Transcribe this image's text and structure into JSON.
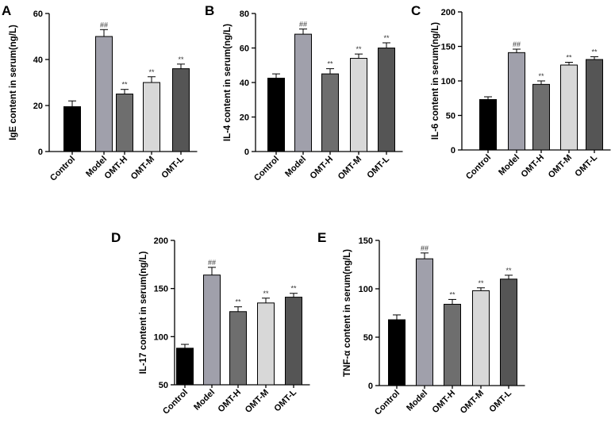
{
  "chart_data": [
    {
      "panel": "A",
      "type": "bar",
      "ylabel": "IgE content in serum(ng/L)",
      "categories": [
        "Control",
        "Model",
        "OMT-H",
        "OMT-M",
        "OMT-L"
      ],
      "values": [
        19.5,
        50,
        25,
        30,
        36
      ],
      "errors": [
        2.5,
        3,
        2,
        2.5,
        2
      ],
      "significance": [
        "",
        "##",
        "**",
        "**",
        "**"
      ],
      "ylim": [
        0,
        60
      ],
      "yticks": [
        0,
        20,
        40,
        60
      ],
      "colors": [
        "#000000",
        "#a0a0ab",
        "#6e6e6e",
        "#d8d8d8",
        "#555555"
      ]
    },
    {
      "panel": "B",
      "type": "bar",
      "ylabel": "IL-4  content in serum(ng/L)",
      "categories": [
        "Control",
        "Model",
        "OMT-H",
        "OMT-M",
        "OMT-L"
      ],
      "values": [
        42.5,
        68,
        45,
        54,
        60
      ],
      "errors": [
        2.5,
        3,
        3,
        2.5,
        3
      ],
      "significance": [
        "",
        "##",
        "**",
        "**",
        "**"
      ],
      "ylim": [
        0,
        80
      ],
      "yticks": [
        0,
        20,
        40,
        60,
        80
      ],
      "colors": [
        "#000000",
        "#a0a0ab",
        "#6e6e6e",
        "#d8d8d8",
        "#555555"
      ]
    },
    {
      "panel": "C",
      "type": "bar",
      "ylabel": "IL-6 content in serum(ng/L)",
      "categories": [
        "Control",
        "Model",
        "OMT-H",
        "OMT-M",
        "OMT-L"
      ],
      "values": [
        73,
        141,
        95,
        123,
        131
      ],
      "errors": [
        4,
        5,
        5,
        4,
        4
      ],
      "significance": [
        "",
        "##",
        "**",
        "**",
        "**"
      ],
      "ylim": [
        0,
        200
      ],
      "yticks": [
        0,
        50,
        100,
        150,
        200
      ],
      "colors": [
        "#000000",
        "#a0a0ab",
        "#6e6e6e",
        "#d8d8d8",
        "#555555"
      ]
    },
    {
      "panel": "D",
      "type": "bar",
      "ylabel": "IL-17 content in serum(ng/L)",
      "categories": [
        "Control",
        "Model",
        "OMT-H",
        "OMT-M",
        "OMT-L"
      ],
      "values": [
        88,
        164,
        126,
        135,
        141
      ],
      "errors": [
        4,
        8,
        5,
        5,
        4
      ],
      "significance": [
        "",
        "##",
        "**",
        "**",
        "**"
      ],
      "ylim": [
        50,
        200
      ],
      "yticks": [
        50,
        100,
        150,
        200
      ],
      "colors": [
        "#000000",
        "#a0a0ab",
        "#6e6e6e",
        "#d8d8d8",
        "#555555"
      ]
    },
    {
      "panel": "E",
      "type": "bar",
      "ylabel": "TNF-α content in serum(ng/L)",
      "categories": [
        "Control",
        "Model",
        "OMT-H",
        "OMT-M",
        "OMT-L"
      ],
      "values": [
        68,
        131,
        84,
        98,
        110
      ],
      "errors": [
        5,
        6,
        5,
        3,
        4
      ],
      "significance": [
        "",
        "##",
        "**",
        "**",
        "**"
      ],
      "ylim": [
        0,
        150
      ],
      "yticks": [
        0,
        50,
        100,
        150
      ],
      "colors": [
        "#000000",
        "#a0a0ab",
        "#6e6e6e",
        "#d8d8d8",
        "#555555"
      ]
    }
  ]
}
